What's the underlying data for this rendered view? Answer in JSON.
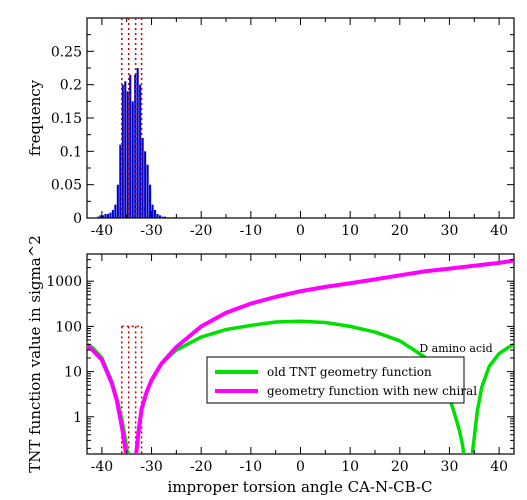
{
  "chart_data": [
    {
      "type": "bar",
      "ylabel": "frequency",
      "xlim": [
        -43,
        43
      ],
      "ylim": [
        0,
        0.3
      ],
      "x_ticks": [
        -40,
        -30,
        -20,
        -10,
        0,
        10,
        20,
        30,
        40
      ],
      "y_ticks": [
        0,
        0.05,
        0.1,
        0.15,
        0.2,
        0.25
      ],
      "y_tick_labels": [
        "0",
        "0.05",
        "0.1",
        "0.15",
        "0.2",
        "0.25"
      ],
      "bar_color": "#0000cc",
      "bin_width": 0.5,
      "x": [
        -41,
        -40.5,
        -40,
        -39.5,
        -39,
        -38.5,
        -38,
        -37.5,
        -37,
        -36.5,
        -36,
        -35.5,
        -35,
        -34.5,
        -34,
        -33.5,
        -33,
        -32.5,
        -32,
        -31.5,
        -31,
        -30.5,
        -30,
        -29.5,
        -29,
        -28.5,
        -28,
        -27.5,
        -27,
        -26.5,
        -26,
        -25.5
      ],
      "values": [
        0.002,
        0.004,
        0.004,
        0.006,
        0.006,
        0.008,
        0.012,
        0.02,
        0.05,
        0.11,
        0.2,
        0.205,
        0.19,
        0.215,
        0.175,
        0.215,
        0.225,
        0.2,
        0.12,
        0.1,
        0.08,
        0.05,
        0.02,
        0.012,
        0.006,
        0.004,
        0.002,
        0.002,
        0.001,
        0.001,
        0.001,
        0.001
      ],
      "reference_lines": {
        "x": [
          -36,
          -34.6,
          -33.2,
          -32
        ],
        "color": "#cc0000",
        "style": "dotted"
      },
      "grid": false
    },
    {
      "type": "line",
      "xlabel": "improper torsion angle CA-N-CB-C",
      "ylabel": "TNT function value in sigma^2",
      "xlim": [
        -43,
        43
      ],
      "ylim": [
        0.15,
        4000
      ],
      "yscale": "log",
      "x_ticks": [
        -40,
        -30,
        -20,
        -10,
        0,
        10,
        20,
        30,
        40
      ],
      "y_ticks": [
        1,
        10,
        100,
        1000
      ],
      "y_tick_labels": [
        "1",
        "10",
        "100",
        "1000"
      ],
      "series": [
        {
          "name": "old TNT geometry function",
          "color": "#00e000",
          "x": [
            -43,
            -42,
            -40,
            -38,
            -37,
            -36,
            -35.5,
            -35,
            -34.7,
            -34.4,
            -34.2,
            -34,
            -33.7,
            -33.4,
            -33.1,
            -32.8,
            -32.5,
            -32,
            -31,
            -30,
            -28,
            -25,
            -20,
            -15,
            -10,
            -5,
            0,
            5,
            10,
            15,
            20,
            25,
            27,
            29,
            30,
            31,
            32,
            32.6,
            33,
            33.4,
            33.7,
            34,
            34.3,
            34.6,
            35,
            35.6,
            36.5,
            38,
            40,
            42,
            43
          ],
          "y": [
            40,
            35,
            20,
            6,
            2.5,
            0.9,
            0.45,
            0.2,
            0.1,
            0.1,
            0.1,
            0.1,
            0.1,
            0.1,
            0.15,
            0.3,
            0.6,
            1.5,
            3.5,
            6.5,
            15,
            30,
            58,
            85,
            105,
            125,
            130,
            122,
            100,
            75,
            48,
            21,
            12,
            5,
            2.6,
            1.2,
            0.5,
            0.25,
            0.12,
            0.1,
            0.1,
            0.1,
            0.1,
            0.15,
            0.35,
            1.3,
            4.5,
            13,
            25,
            35,
            40
          ]
        },
        {
          "name": "geometry function with new chiral",
          "color": "#ff00ff",
          "x": [
            -43,
            -42,
            -40,
            -38,
            -37,
            -36.2,
            -35.7,
            -35.3,
            -35,
            -34.8,
            -34.6,
            -34.4,
            -34.2,
            -34,
            -33.7,
            -33.4,
            -33.1,
            -32.8,
            -32.5,
            -32,
            -31,
            -30,
            -28,
            -25,
            -20,
            -15,
            -10,
            -5,
            0,
            5,
            10,
            15,
            20,
            25,
            30,
            35,
            40,
            43
          ],
          "y": [
            36,
            31,
            18,
            5.5,
            2.3,
            0.8,
            0.4,
            0.2,
            0.1,
            0.1,
            0.1,
            0.1,
            0.1,
            0.1,
            0.1,
            0.1,
            0.15,
            0.3,
            0.6,
            1.5,
            3.5,
            6.5,
            15,
            35,
            100,
            200,
            320,
            450,
            600,
            750,
            900,
            1100,
            1350,
            1650,
            1900,
            2200,
            2550,
            2850
          ]
        }
      ],
      "reference_lines": {
        "x": [
          -36,
          -34.6,
          -33.2,
          -32
        ],
        "color": "#cc0000",
        "style": "dotted",
        "y_top": 100
      },
      "annotation": "D amino acid",
      "legend_position": "lower-right",
      "grid": false
    }
  ]
}
